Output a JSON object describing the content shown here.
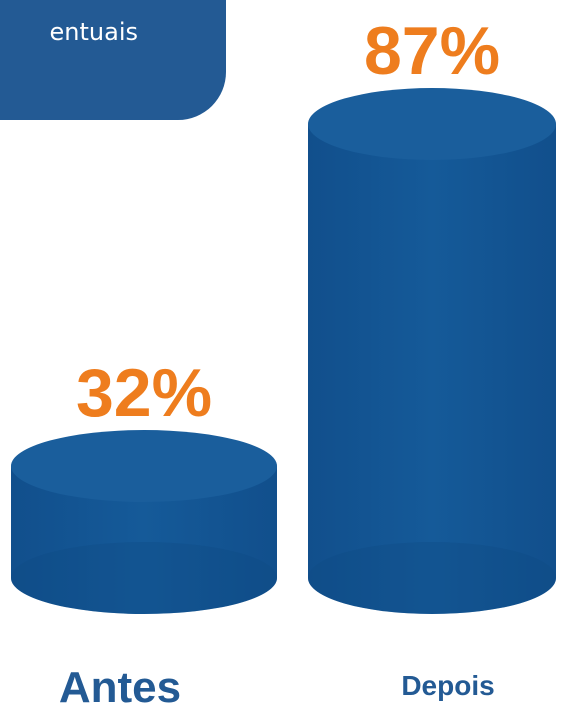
{
  "header": {
    "title_fragment": "entuais"
  },
  "colors": {
    "cylinder": "#155a99",
    "cylinder_dark": "#0e4a84",
    "cylinder_top": "#1a5e9c",
    "value_label": "#ee7d1e",
    "category_label": "#235a94",
    "header_bg": "#235a94"
  },
  "chart_data": {
    "type": "bar",
    "style": "3d-cylinder",
    "categories": [
      "Antes",
      "Depois"
    ],
    "values": [
      32,
      87
    ],
    "value_labels": [
      "32%",
      "87%"
    ],
    "title": "",
    "xlabel": "",
    "ylabel": "",
    "ylim": [
      0,
      100
    ],
    "grid": false,
    "legend": "none"
  }
}
